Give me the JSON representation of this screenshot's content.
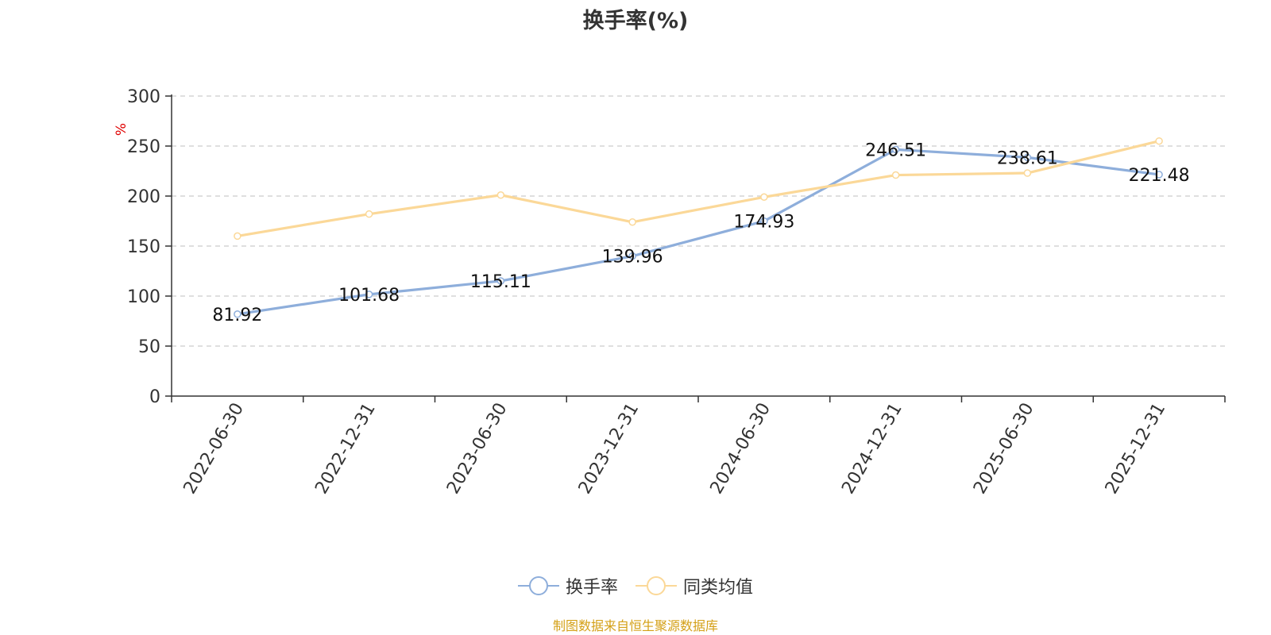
{
  "chart_data": {
    "type": "line",
    "title": "换手率(%)",
    "ylabel": "%",
    "xlabel": "",
    "categories": [
      "2022-06-30",
      "2022-12-31",
      "2023-06-30",
      "2023-12-31",
      "2024-06-30",
      "2024-12-31",
      "2025-06-30",
      "2025-12-31"
    ],
    "ylim": [
      0,
      300
    ],
    "yticks": [
      0,
      50,
      100,
      150,
      200,
      250,
      300
    ],
    "grid": true,
    "legend_position": "bottom-center",
    "series": [
      {
        "name": "换手率",
        "color": "#8eaedb",
        "values": [
          81.92,
          101.68,
          115.11,
          139.96,
          174.93,
          246.51,
          238.61,
          221.48
        ],
        "labels": [
          "81.92",
          "101.68",
          "115.11",
          "139.96",
          "174.93",
          "246.51",
          "238.61",
          "221.48"
        ]
      },
      {
        "name": "同类均值",
        "color": "#fbd898",
        "values": [
          160,
          182,
          201,
          174,
          199,
          221,
          223,
          255
        ]
      }
    ]
  },
  "source_note": "制图数据来自恒生聚源数据库",
  "colors": {
    "axis": "#333333",
    "grid": "#cccccc",
    "ylabel": "#e00000",
    "source_note": "#d4a017"
  }
}
